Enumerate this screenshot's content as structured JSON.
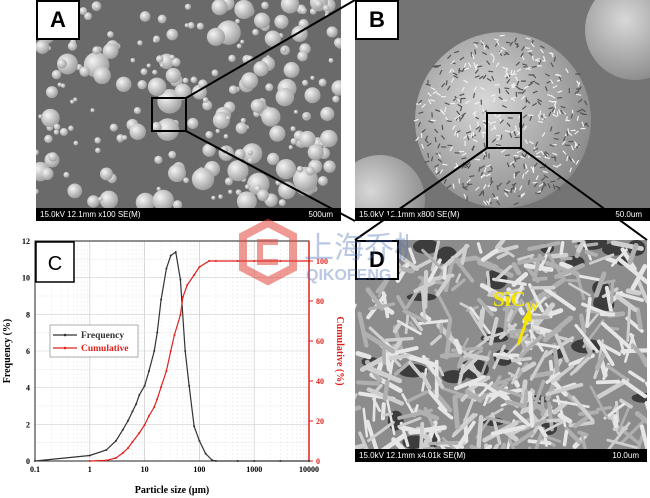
{
  "panels": {
    "a": {
      "letter": "A",
      "info": "15.0kV 12.1mm x100 SE(M)",
      "scale": "500um"
    },
    "b": {
      "letter": "B",
      "info": "15.0kV 12.1mm x800 SE(M)",
      "scale": "50.0um"
    },
    "c": {
      "letter": "C"
    },
    "d": {
      "letter": "D",
      "info": "15.0kV 12.1mm x4.01k SE(M)",
      "scale": "10.0um",
      "annotation": "SiC",
      "annotation_sub": "W",
      "arrow_color": "#f5e400"
    }
  },
  "watermark": {
    "text": "上海乔枫",
    "latin": "QIKOFENG",
    "color": "#e2463f"
  },
  "chart_data": {
    "type": "line",
    "xlabel": "Particle size (μm)",
    "ylabel": "Frequency (%)",
    "y2label": "Cumulative (%)",
    "xscale": "log",
    "xlim": [
      0.1,
      10000
    ],
    "ylim": [
      0,
      12
    ],
    "y2lim": [
      0,
      110
    ],
    "xticks": [
      "0.1",
      "1",
      "10",
      "100",
      "1000",
      "10000"
    ],
    "yticks": [
      "0",
      "2",
      "4",
      "6",
      "8",
      "10",
      "12"
    ],
    "y2ticks": [
      "0",
      "20",
      "40",
      "60",
      "80",
      "100"
    ],
    "grid": true,
    "legend": "center-left",
    "series": [
      {
        "name": "Frequency",
        "axis": "left",
        "color": "#333333",
        "x": [
          0.1,
          1,
          2,
          3,
          4,
          5,
          6,
          7,
          8,
          10,
          12,
          15,
          17,
          20,
          25,
          30,
          37,
          45,
          55,
          65,
          80,
          100,
          130,
          170,
          200,
          500,
          1000,
          3000,
          10000
        ],
        "y": [
          0,
          0.3,
          0.6,
          1.1,
          1.7,
          2.2,
          2.7,
          3.1,
          3.6,
          4.1,
          4.9,
          6.0,
          7.0,
          8.8,
          10.5,
          11.2,
          11.4,
          9.9,
          6.0,
          4.1,
          1.9,
          1.1,
          0.4,
          0.05,
          0,
          0,
          0,
          0,
          0
        ]
      },
      {
        "name": "Cumulative",
        "axis": "right",
        "color": "#e0201c",
        "x": [
          1,
          2,
          3,
          4,
          5,
          6,
          8,
          10,
          12,
          15,
          17,
          20,
          25,
          30,
          35,
          45,
          50,
          60,
          80,
          100,
          150,
          200,
          500,
          1000,
          3000,
          10000
        ],
        "y": [
          0,
          0.3,
          1.5,
          4,
          6.5,
          9.5,
          14,
          18,
          22.5,
          27,
          31,
          37,
          45,
          55,
          63,
          73,
          82,
          88,
          93,
          97,
          100,
          100,
          100,
          100,
          100,
          100
        ]
      }
    ]
  }
}
